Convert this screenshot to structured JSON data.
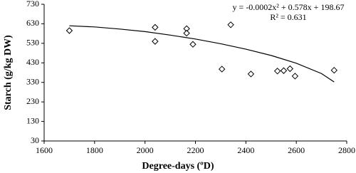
{
  "chart_data": {
    "type": "scatter",
    "xlabel": "Degree-days (ºD)",
    "ylabel": "Starch (g/kg DW)",
    "xlim": [
      1600,
      2800
    ],
    "xticks": [
      1600,
      1800,
      2000,
      2200,
      2400,
      2600,
      2800
    ],
    "ylim": [
      30,
      730
    ],
    "yticks": [
      30,
      130,
      230,
      330,
      430,
      530,
      630,
      730
    ],
    "series": [
      {
        "color": "#000000",
        "x": [
          1700,
          2040,
          2040,
          2165,
          2165,
          2190,
          2305,
          2340,
          2420,
          2525,
          2550,
          2575,
          2595,
          2750
        ],
        "values": [
          595,
          540,
          612,
          605,
          582,
          525,
          398,
          625,
          373,
          388,
          390,
          400,
          362,
          392
        ]
      }
    ],
    "trendline": {
      "color": "#000000",
      "x": [
        1700,
        1800,
        1900,
        2000,
        2100,
        2200,
        2300,
        2400,
        2500,
        2600,
        2700,
        2750
      ],
      "values": [
        620,
        614,
        603,
        590,
        572,
        552,
        528,
        500,
        468,
        428,
        375,
        332
      ]
    },
    "annotations": [
      "y = -0.0002x² + 0.578x + 198.67",
      "R² = 0.631"
    ]
  }
}
